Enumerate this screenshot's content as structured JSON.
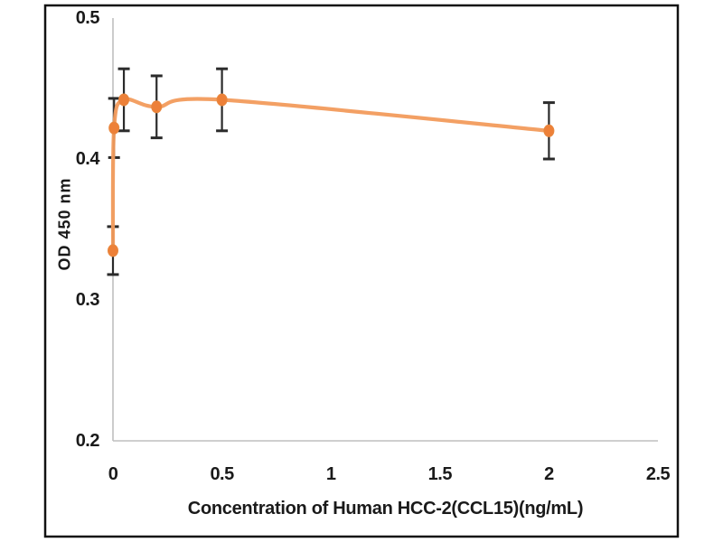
{
  "chart_data": {
    "type": "line",
    "title": "",
    "xlabel": "Concentration of Human HCC-2(CCL15)(ng/mL)",
    "ylabel": "OD 450 nm",
    "x": [
      0,
      0.005,
      0.05,
      0.2,
      0.5,
      2
    ],
    "y": [
      0.335,
      0.422,
      0.442,
      0.437,
      0.442,
      0.42
    ],
    "y_err": [
      0.017,
      0.021,
      0.022,
      0.022,
      0.022,
      0.02
    ],
    "xlim": [
      0,
      2.5
    ],
    "ylim": [
      0.2,
      0.5
    ],
    "x_ticks": [
      "0",
      "0.5",
      "1",
      "1.5",
      "2",
      "2.5"
    ],
    "x_tick_values": [
      0,
      0.5,
      1,
      1.5,
      2,
      2.5
    ],
    "y_ticks": [
      "0.2",
      "0.3",
      "0.4",
      "0.5"
    ],
    "y_tick_values": [
      0.2,
      0.3,
      0.4,
      0.5
    ],
    "grid": false,
    "legend": "none",
    "marker": "circle",
    "error_bars": "vertical",
    "colors": {
      "line": "#F29B5C",
      "marker_fill": "#ED8038",
      "marker_edge": "#E8883F",
      "error_bar": "#2B2B2B",
      "axis_line": "#BFBFBF",
      "frame": "#111111",
      "text": "#1a1a1a",
      "background": "#ffffff"
    }
  }
}
